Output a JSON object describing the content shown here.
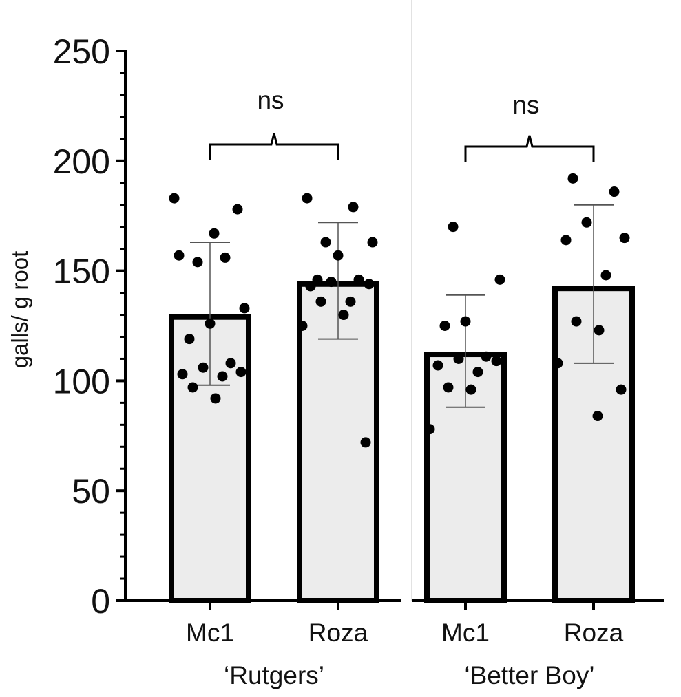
{
  "chart_data": {
    "type": "bar",
    "ylabel": "galls/ g root",
    "ylim": [
      0,
      250
    ],
    "yticks": [
      "0",
      "50",
      "100",
      "150",
      "200",
      "250"
    ],
    "colors": {
      "bar_fill": "#ececec",
      "bar_stroke": "#000000",
      "points": "#000000",
      "error": "#555555"
    },
    "groups": [
      {
        "name": "‘Rutgers’",
        "significance": "ns",
        "bars": [
          {
            "category": "Mc1",
            "mean": 129,
            "sd_low": 98,
            "sd_high": 163,
            "points": [
              183,
              178,
              167,
              157,
              156,
              154,
              133,
              126,
              119,
              108,
              106,
              104,
              103,
              102,
              97,
              92
            ]
          },
          {
            "category": "Roza",
            "mean": 144,
            "sd_low": 119,
            "sd_high": 172,
            "points": [
              183,
              179,
              163,
              163,
              157,
              146,
              146,
              145,
              144,
              143,
              136,
              136,
              130,
              125,
              72
            ]
          }
        ]
      },
      {
        "name": "‘Better Boy’",
        "significance": "ns",
        "bars": [
          {
            "category": "Mc1",
            "mean": 112,
            "sd_low": 88,
            "sd_high": 139,
            "points": [
              170,
              146,
              127,
              125,
              111,
              110,
              109,
              107,
              104,
              97,
              96,
              78
            ]
          },
          {
            "category": "Roza",
            "mean": 142,
            "sd_low": 108,
            "sd_high": 180,
            "points": [
              192,
              186,
              172,
              165,
              164,
              148,
              127,
              123,
              108,
              96,
              84
            ]
          }
        ]
      }
    ]
  }
}
